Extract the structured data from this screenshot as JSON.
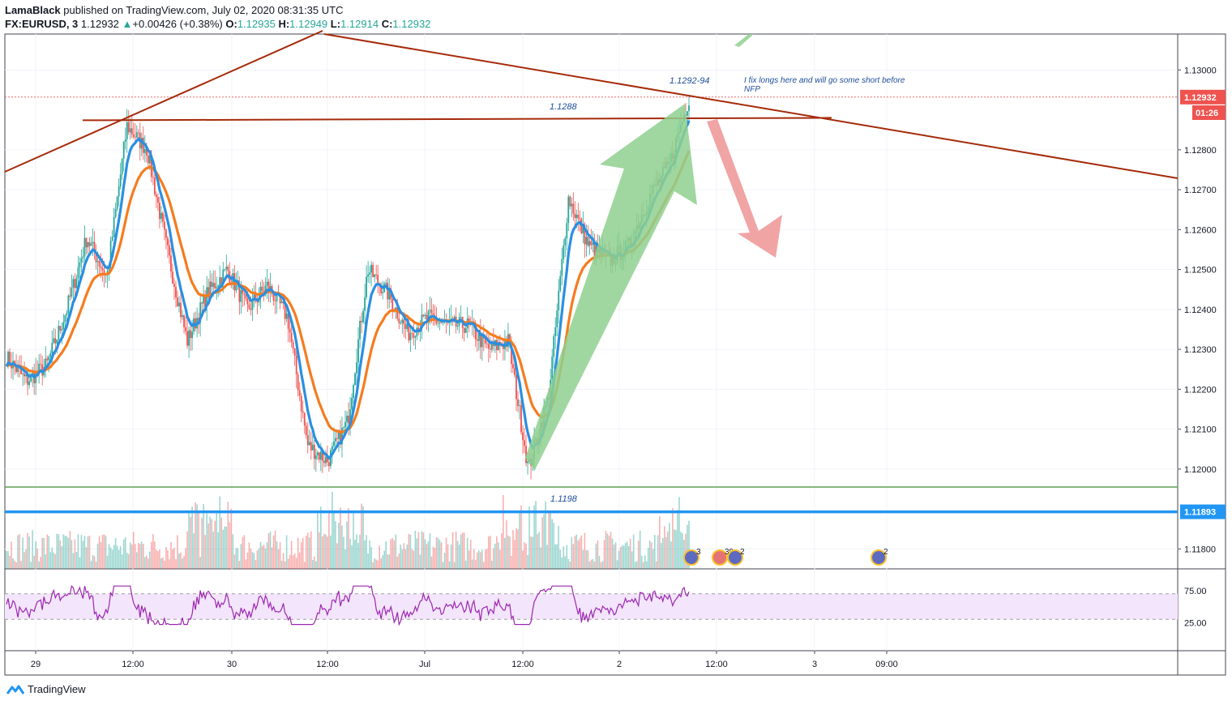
{
  "header": {
    "publisher_name": "LamaBlack",
    "publisher_text": " published on TradingView.com, July 02, 2020 08:31:35 UTC",
    "symbol": "FX:EURUSD, 3",
    "last": "1.12932",
    "change": "+0.00426 (+0.38%)",
    "o_label": "O:",
    "o_value": "1.12935",
    "h_label": "H:",
    "h_value": "1.12949",
    "l_label": "L:",
    "l_value": "1.12914",
    "c_label": "C:",
    "c_value": "1.12932"
  },
  "footer": {
    "brand": "TradingView"
  },
  "colors": {
    "up": "#26a69a",
    "down": "#ef5350",
    "ema_fast": "#2b8fe0",
    "ema_slow": "#f57c1f",
    "trendline": "#a52a0a",
    "support_green": "#5fa052",
    "support_blue": "#2196f3",
    "rsi": "#9c27b0",
    "rsi_band": "#f3e5fb",
    "arrow_up": "#8fd08f",
    "arrow_down": "#ef9a9a"
  },
  "chart_data": {
    "type": "candlestick",
    "price_axis": {
      "ticks": [
        "1.13000",
        "1.12800",
        "1.12700",
        "1.12600",
        "1.12500",
        "1.12400",
        "1.12300",
        "1.12200",
        "1.12100",
        "1.12000",
        "1.11800"
      ],
      "range": [
        1.1175,
        1.1309
      ]
    },
    "time_axis": {
      "ticks": [
        "29",
        "12:00",
        "30",
        "12:00",
        "Jul",
        "12:00",
        "2",
        "12:00",
        "3",
        "09:00"
      ]
    },
    "current_price_label": "1.12932",
    "countdown_label": "01:26",
    "blue_level_label": "1.11893",
    "annotations": [
      {
        "text": "1.1292-94"
      },
      {
        "text": "I fix longs here and will go some short before"
      },
      {
        "text": "NFP"
      },
      {
        "text": "1.1288"
      },
      {
        "text": "1.1198"
      }
    ],
    "levels": {
      "resistance": 1.1288,
      "green_support": 1.11955,
      "blue_support": 1.11893,
      "current": 1.12932
    },
    "events": [
      {
        "label": "3"
      },
      {
        "label": "39"
      },
      {
        "label": "2"
      },
      {
        "label": "2"
      }
    ],
    "rsi": {
      "ticks": [
        "75.00",
        "25.00"
      ],
      "upper": 70,
      "lower": 30
    },
    "close_path": [
      1.1228,
      1.1222,
      1.1226,
      1.124,
      1.1258,
      1.1248,
      1.1286,
      1.128,
      1.1255,
      1.1232,
      1.1244,
      1.125,
      1.124,
      1.1246,
      1.1238,
      1.1206,
      1.1202,
      1.1212,
      1.125,
      1.1244,
      1.1234,
      1.1238,
      1.1236,
      1.1236,
      1.123,
      1.1232,
      1.12,
      1.1218,
      1.1268,
      1.1256,
      1.1252,
      1.1256,
      1.1268,
      1.1276,
      1.1293
    ]
  }
}
